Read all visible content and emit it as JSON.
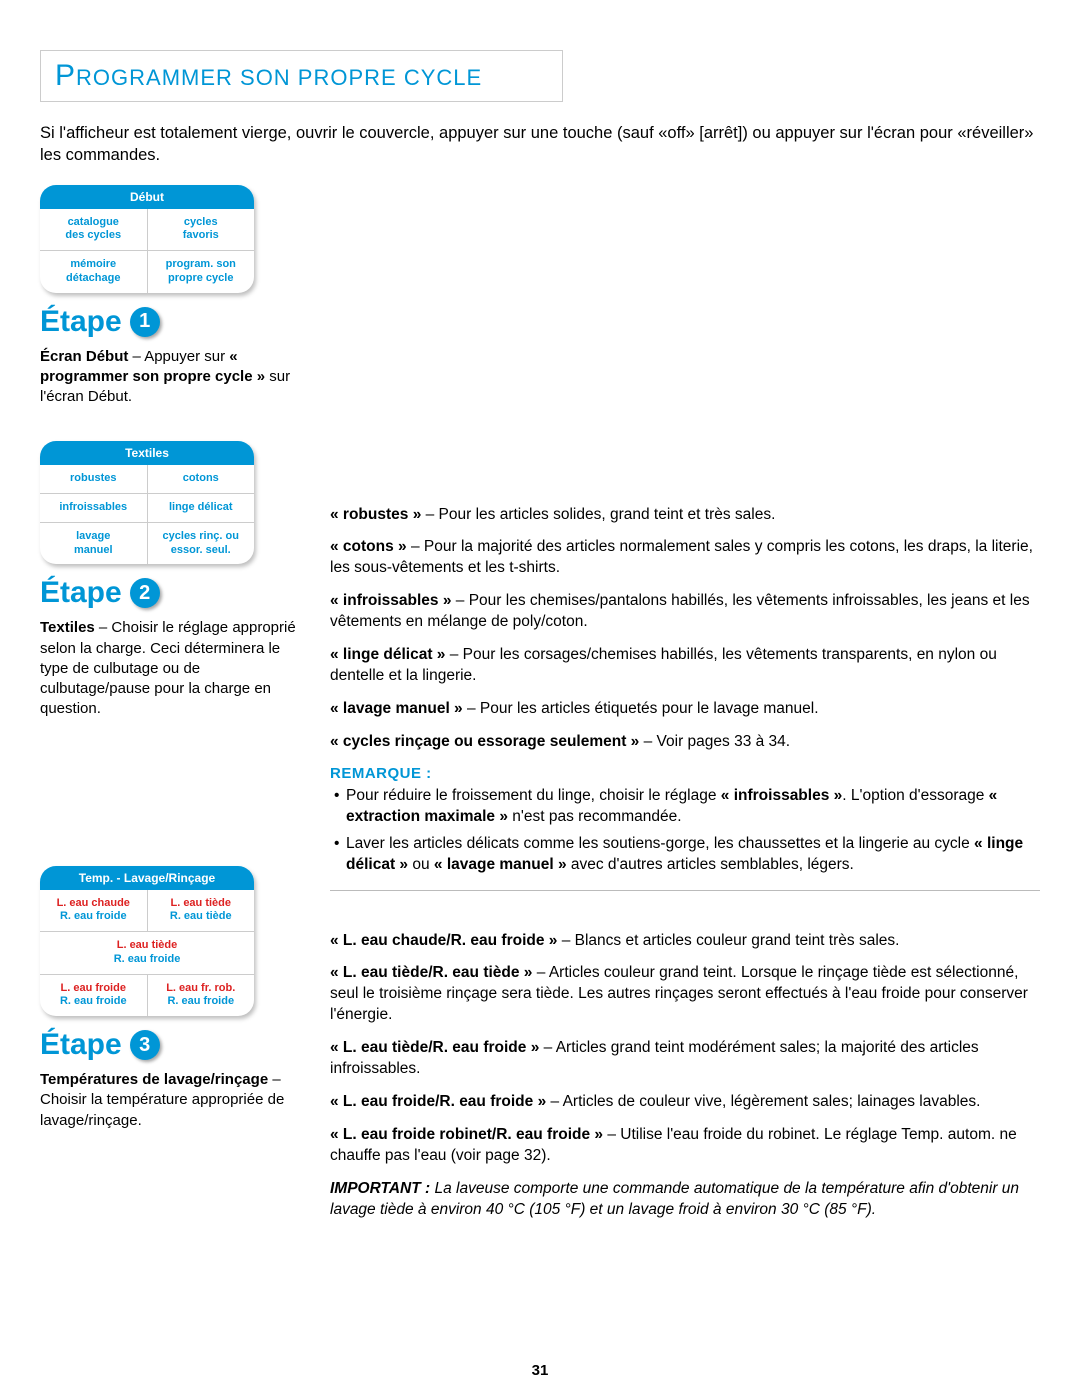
{
  "colors": {
    "accent": "#0096d6",
    "red": "#d22"
  },
  "title": "Programmer son propre cycle",
  "intro": "Si l'afficheur est totalement vierge, ouvrir le couvercle, appuyer sur une touche (sauf «off» [arrêt]) ou appuyer sur l'écran pour «réveiller» les commandes.",
  "panel1": {
    "header": "Début",
    "rows": [
      [
        "catalogue\ndes cycles",
        "cycles\nfavoris"
      ],
      [
        "mémoire\ndétachage",
        "program. son\npropre cycle"
      ]
    ]
  },
  "step1": {
    "label": "Étape",
    "num": "1",
    "body_prefix": "Écran Début",
    "body_mid": " – Appuyer sur ",
    "body_bold": "« programmer son propre cycle »",
    "body_suffix": " sur l'écran Début."
  },
  "panel2": {
    "header": "Textiles",
    "rows": [
      [
        "robustes",
        "cotons"
      ],
      [
        "infroissables",
        "linge délicat"
      ],
      [
        "lavage\nmanuel",
        "cycles rinç. ou\nessor. seul."
      ]
    ]
  },
  "step2": {
    "label": "Étape",
    "num": "2",
    "body_prefix": "Textiles",
    "body_rest": " – Choisir le réglage approprié selon la charge. Ceci déterminera le type de culbutage ou de culbutage/pause pour la charge en question."
  },
  "fabric_defs": [
    {
      "term": "« robustes »",
      "def": " – Pour les articles solides, grand teint et très sales."
    },
    {
      "term": "« cotons »",
      "def": " – Pour la majorité des articles normalement sales y compris les cotons, les draps, la literie, les sous-vêtements et les t-shirts."
    },
    {
      "term": "« infroissables »",
      "def": " – Pour les chemises/pantalons habillés, les vêtements infroissables, les jeans et les vêtements en mélange de poly/coton."
    },
    {
      "term": "« linge délicat »",
      "def": " – Pour les corsages/chemises habillés, les vêtements transparents, en nylon ou dentelle et la lingerie."
    },
    {
      "term": "« lavage manuel »",
      "def": " – Pour les articles étiquetés pour le lavage manuel."
    },
    {
      "term": "« cycles rinçage ou essorage seulement »",
      "def": " – Voir pages 33 à 34."
    }
  ],
  "remarque_label": "REMARQUE :",
  "remarque": [
    "Pour réduire le froissement du linge, choisir le réglage <b>« infroissables »</b>. L'option d'essorage <b>« extraction maximale »</b> n'est pas recommandée.",
    "Laver les articles délicats comme les soutiens-gorge, les chaussettes et la lingerie au cycle <b>« linge délicat »</b> ou <b>« lavage manuel »</b> avec d'autres articles semblables, légers."
  ],
  "panel3": {
    "header": "Temp. - Lavage/Rinçage",
    "rows": [
      [
        {
          "top": "L. eau chaude",
          "bot": "R. eau froide"
        },
        {
          "top": "L. eau tiède",
          "bot": "R. eau tiède"
        }
      ],
      [
        {
          "full": true,
          "top": "L. eau tiède",
          "bot": "R. eau froide"
        }
      ],
      [
        {
          "top": "L. eau froide",
          "bot": "R. eau froide"
        },
        {
          "top": "L. eau fr. rob.",
          "bot": "R. eau froide"
        }
      ]
    ]
  },
  "step3": {
    "label": "Étape",
    "num": "3",
    "body_prefix": "Températures de lavage/rinçage",
    "body_rest": " – Choisir la température appropriée de lavage/rinçage."
  },
  "temp_defs": [
    {
      "term": "« L. eau chaude/R. eau froide »",
      "def": " – Blancs et articles couleur grand teint très sales."
    },
    {
      "term": "« L. eau tiède/R. eau tiède »",
      "def": " – Articles couleur grand teint. Lorsque le rinçage tiède est sélectionné, seul le troisième rinçage sera tiède. Les autres rinçages seront effectués à l'eau froide pour conserver l'énergie."
    },
    {
      "term": "« L. eau tiède/R. eau froide »",
      "def": " – Articles grand teint modérément sales; la majorité des articles infroissables."
    },
    {
      "term": "« L. eau froide/R. eau froide »",
      "def": " – Articles de couleur vive, légèrement sales; lainages lavables."
    },
    {
      "term": "« L. eau froide robinet/R. eau froide »",
      "def": " – Utilise l'eau froide du robinet. Le réglage Temp. autom. ne chauffe pas l'eau (voir page 32)."
    }
  ],
  "important_label": "IMPORTANT :",
  "important": " La laveuse comporte une commande automatique de la température afin d'obtenir un lavage tiède à environ 40 °C (105 °F) et un lavage froid à environ 30 °C (85 °F).",
  "page_number": "31"
}
